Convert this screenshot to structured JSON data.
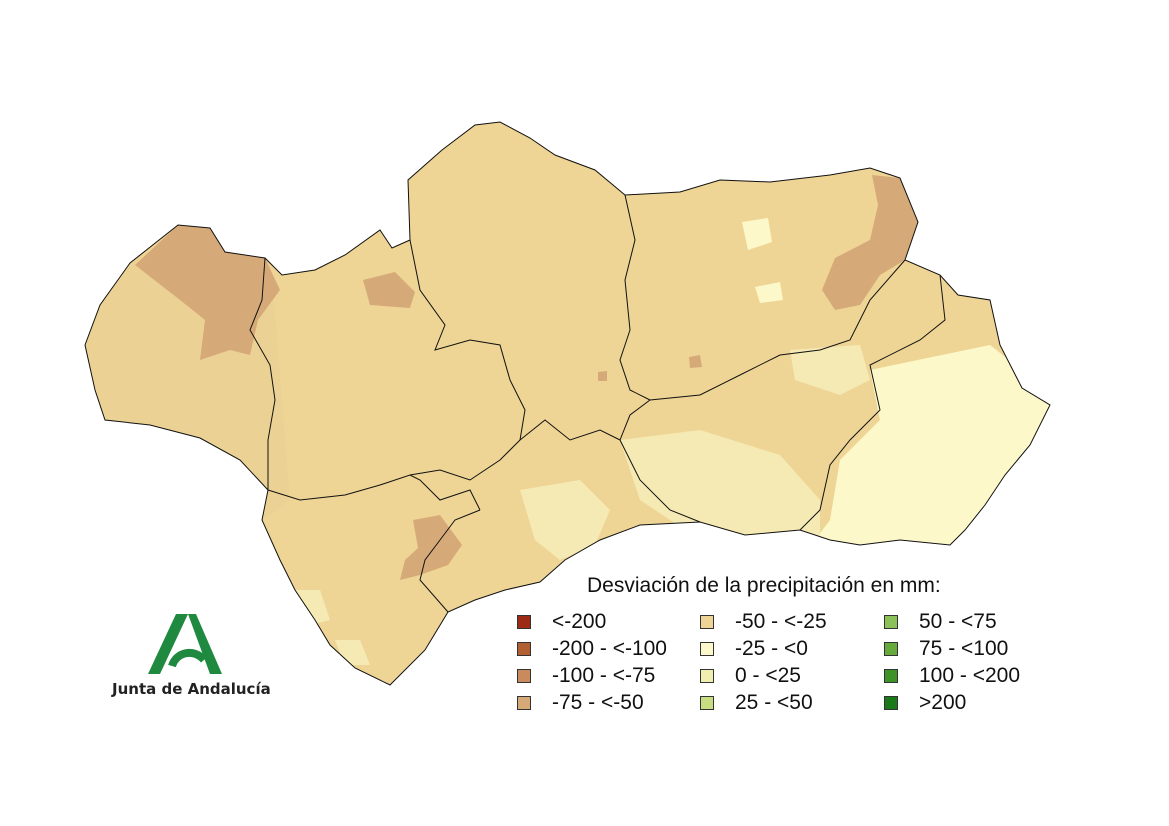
{
  "legend": {
    "title": "Desviación de la precipitación en mm:",
    "columns": [
      [
        {
          "label": "<-200",
          "color": "#9c2a14"
        },
        {
          "label": "-200 - <-100",
          "color": "#b25f32"
        },
        {
          "label": "-100 - <-75",
          "color": "#c98a5e"
        },
        {
          "label": "-75 - <-50",
          "color": "#d6aa78"
        }
      ],
      [
        {
          "label": "-50 - <-25",
          "color": "#eed595"
        },
        {
          "label": "-25 - <0",
          "color": "#fdf8c9"
        },
        {
          "label": "0 - <25",
          "color": "#f1efb0"
        },
        {
          "label": "25 - <50",
          "color": "#c8dc82"
        }
      ],
      [
        {
          "label": "50 - <75",
          "color": "#8cc15a"
        },
        {
          "label": "75 - <100",
          "color": "#66aa3c"
        },
        {
          "label": "100 - <200",
          "color": "#3d9228"
        },
        {
          "label": ">200",
          "color": "#1a7a1a"
        }
      ]
    ]
  },
  "logo": {
    "text": "Junta de Andalucía",
    "icon": "junta-andalucia-logo-icon",
    "color": "#1f8a3f"
  }
}
